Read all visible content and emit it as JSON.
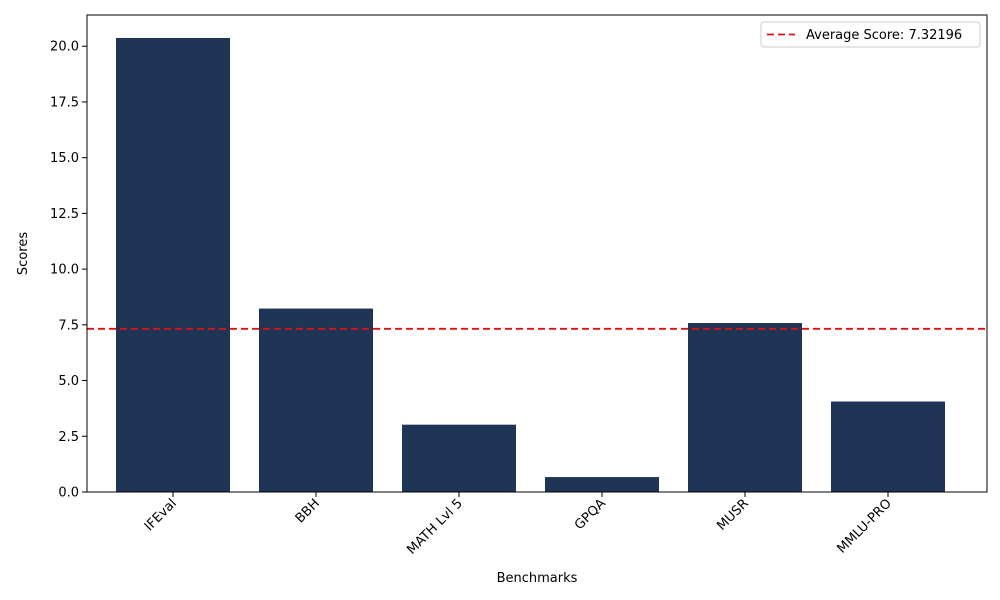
{
  "chart_data": {
    "type": "bar",
    "categories": [
      "IFEval",
      "BBH",
      "MATH Lvl 5",
      "GPQA",
      "MUSR",
      "MMLU-PRO"
    ],
    "values": [
      20.37,
      8.23,
      3.02,
      0.67,
      7.58,
      4.06
    ],
    "xlabel": "Benchmarks",
    "ylabel": "Scores",
    "ylim": [
      0,
      21.4
    ],
    "yticks": [
      "0.0",
      "2.5",
      "5.0",
      "7.5",
      "10.0",
      "12.5",
      "15.0",
      "17.5",
      "20.0"
    ],
    "average": 7.32196,
    "legend_label": "Average Score: 7.32196",
    "legend_position": "top-right",
    "grid": false,
    "bar_color": "#1f3556",
    "average_line_color": "#e01010"
  }
}
